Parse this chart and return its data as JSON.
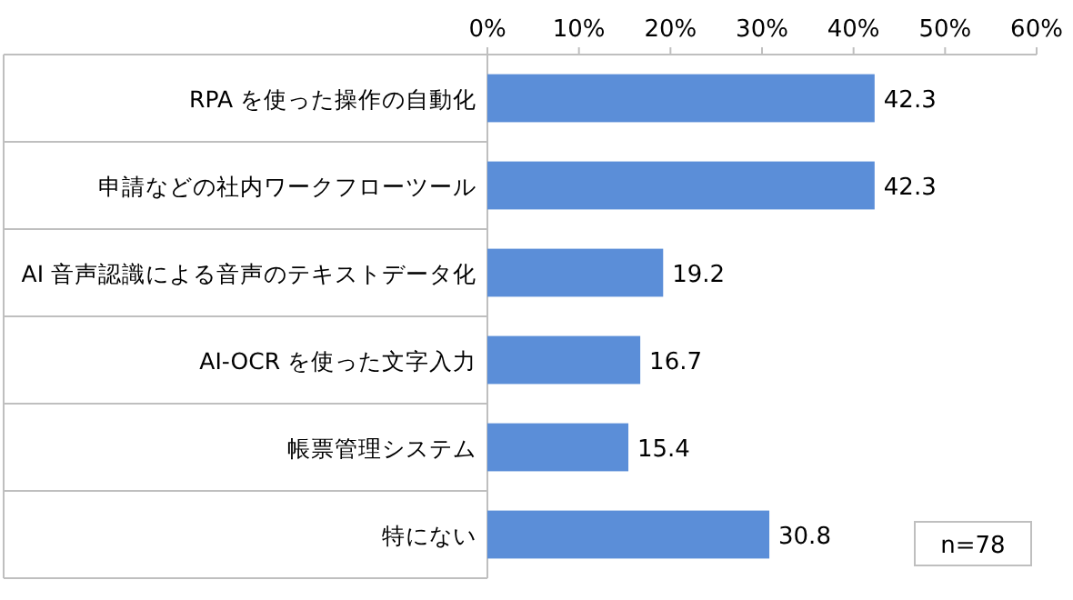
{
  "chart_data": {
    "type": "bar",
    "orientation": "horizontal",
    "categories": [
      "RPA を使った操作の自動化",
      "申請などの社内ワークフローツール",
      "AI 音声認識による音声のテキストデータ化",
      "AI-OCR を使った文字入力",
      "帳票管理システム",
      "特にない"
    ],
    "values": [
      42.3,
      42.3,
      19.2,
      16.7,
      15.4,
      30.8
    ],
    "color": "#5b8ed8",
    "xlim": [
      0,
      60
    ],
    "xticks": [
      {
        "value": 0,
        "label": "0%"
      },
      {
        "value": 10,
        "label": "10%"
      },
      {
        "value": 20,
        "label": "20%"
      },
      {
        "value": 30,
        "label": "30%"
      },
      {
        "value": 40,
        "label": "40%"
      },
      {
        "value": 50,
        "label": "50%"
      },
      {
        "value": 60,
        "label": "60%"
      }
    ],
    "data_labels": true,
    "grid": false,
    "annotations": [
      "n=78"
    ]
  }
}
